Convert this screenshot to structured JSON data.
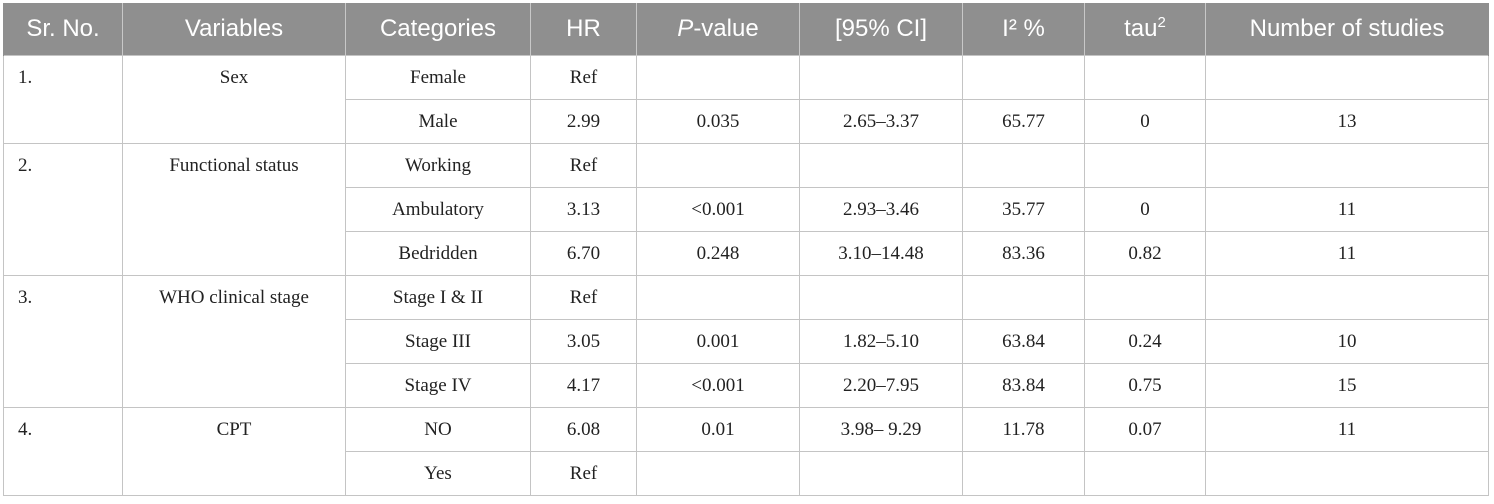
{
  "table": {
    "headers": {
      "sr": "Sr. No.",
      "variables": "Variables",
      "categories": "Categories",
      "hr": "HR",
      "p_italic": "P",
      "p_rest": "-value",
      "ci": "[95% CI]",
      "i2": "I² %",
      "tau_base": "tau",
      "tau_sup": "2",
      "studies": "Number of studies"
    },
    "groups": [
      {
        "sr": "1.",
        "variable": "Sex",
        "rows": [
          {
            "category": "Female",
            "hr": "Ref",
            "p": "",
            "ci": "",
            "i2": "",
            "tau2": "",
            "studies": ""
          },
          {
            "category": "Male",
            "hr": "2.99",
            "p": "0.035",
            "ci": "2.65–3.37",
            "i2": "65.77",
            "tau2": "0",
            "studies": "13"
          }
        ]
      },
      {
        "sr": "2.",
        "variable": "Functional status",
        "rows": [
          {
            "category": "Working",
            "hr": "Ref",
            "p": "",
            "ci": "",
            "i2": "",
            "tau2": "",
            "studies": ""
          },
          {
            "category": "Ambulatory",
            "hr": "3.13",
            "p": "<0.001",
            "ci": "2.93–3.46",
            "i2": "35.77",
            "tau2": "0",
            "studies": "11"
          },
          {
            "category": "Bedridden",
            "hr": "6.70",
            "p": "0.248",
            "ci": "3.10–14.48",
            "i2": "83.36",
            "tau2": "0.82",
            "studies": "11"
          }
        ]
      },
      {
        "sr": "3.",
        "variable": "WHO clinical stage",
        "rows": [
          {
            "category": "Stage I & II",
            "hr": "Ref",
            "p": "",
            "ci": "",
            "i2": "",
            "tau2": "",
            "studies": ""
          },
          {
            "category": "Stage III",
            "hr": "3.05",
            "p": "0.001",
            "ci": "1.82–5.10",
            "i2": "63.84",
            "tau2": "0.24",
            "studies": "10"
          },
          {
            "category": "Stage IV",
            "hr": "4.17",
            "p": "<0.001",
            "ci": "2.20–7.95",
            "i2": "83.84",
            "tau2": "0.75",
            "studies": "15"
          }
        ]
      },
      {
        "sr": "4.",
        "variable": "CPT",
        "rows": [
          {
            "category": "NO",
            "hr": "6.08",
            "p": "0.01",
            "ci": "3.98– 9.29",
            "i2": "11.78",
            "tau2": "0.07",
            "studies": "11"
          },
          {
            "category": "Yes",
            "hr": "Ref",
            "p": "",
            "ci": "",
            "i2": "",
            "tau2": "",
            "studies": ""
          }
        ]
      }
    ]
  }
}
